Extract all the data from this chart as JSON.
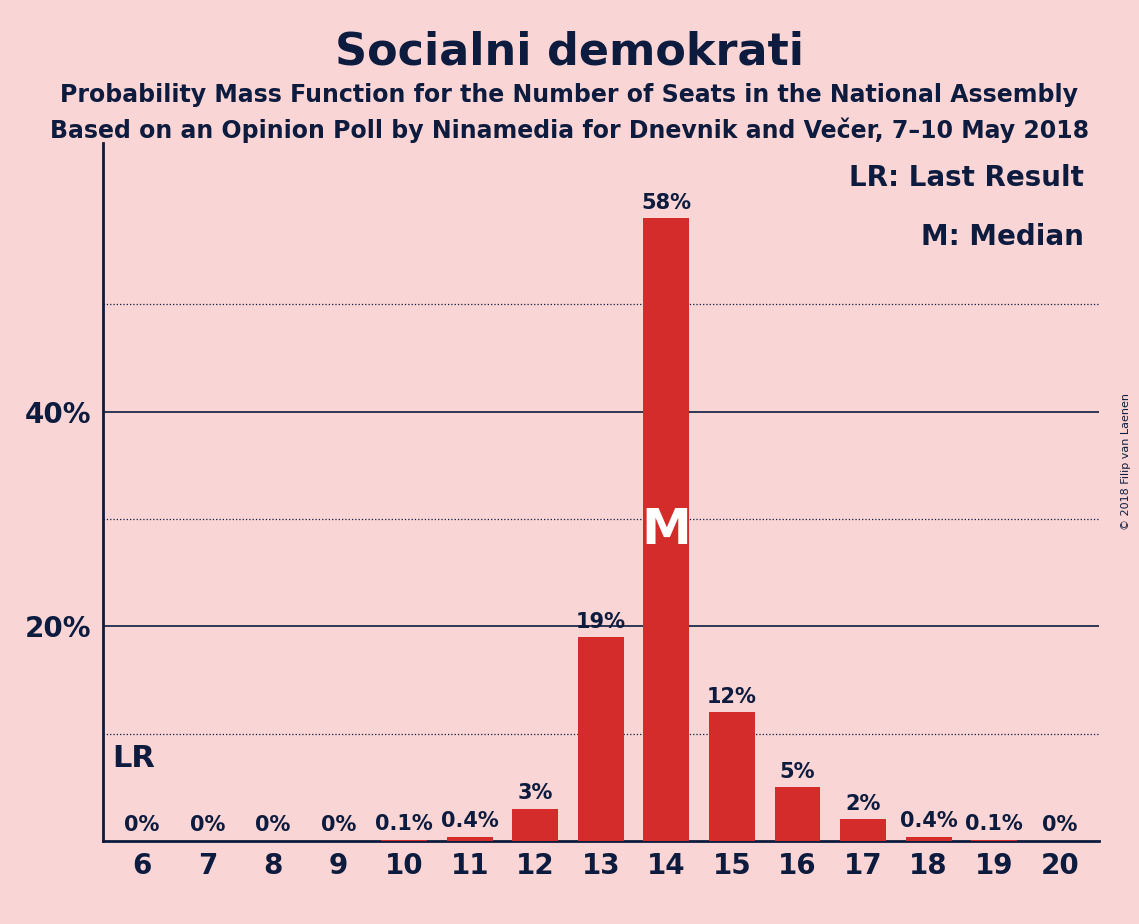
{
  "title": "Socialni demokrati",
  "subtitle1": "Probability Mass Function for the Number of Seats in the National Assembly",
  "subtitle2": "Based on an Opinion Poll by Ninamedia for Dnevnik and Večer, 7–10 May 2018",
  "copyright": "© 2018 Filip van Laenen",
  "categories": [
    6,
    7,
    8,
    9,
    10,
    11,
    12,
    13,
    14,
    15,
    16,
    17,
    18,
    19,
    20
  ],
  "values": [
    0.0,
    0.0,
    0.0,
    0.0,
    0.1,
    0.4,
    3.0,
    19.0,
    58.0,
    12.0,
    5.0,
    2.0,
    0.4,
    0.1,
    0.0
  ],
  "labels": [
    "0%",
    "0%",
    "0%",
    "0%",
    "0.1%",
    "0.4%",
    "3%",
    "19%",
    "58%",
    "12%",
    "5%",
    "2%",
    "0.4%",
    "0.1%",
    "0%"
  ],
  "bar_color": "#d42b2b",
  "background_color": "#f9d5d5",
  "text_color": "#0d1b3e",
  "median_seat": 14,
  "lr_seat": 6,
  "ylim": [
    0,
    65
  ],
  "legend_lr": "LR: Last Result",
  "legend_m": "M: Median",
  "lr_label": "LR",
  "m_label": "M",
  "title_fontsize": 32,
  "subtitle_fontsize": 17,
  "axis_fontsize": 20,
  "bar_label_fontsize": 15,
  "annotation_fontsize": 22,
  "legend_fontsize": 20,
  "dotted_grid_levels": [
    10,
    30,
    50
  ],
  "solid_grid_levels": [
    20,
    40
  ]
}
